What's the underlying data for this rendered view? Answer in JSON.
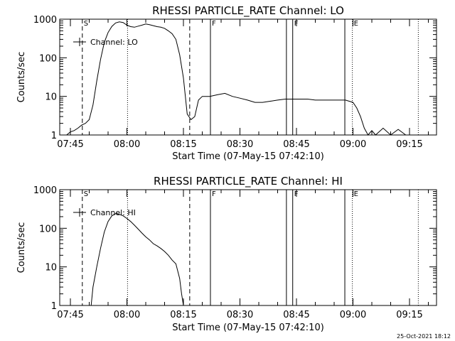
{
  "chart_data": [
    {
      "type": "line",
      "title": "RHESSI PARTICLE_RATE Channel: LO",
      "xlabel": "Start Time (07-May-15 07:42:10)",
      "ylabel": "Counts/sec",
      "yscale": "log",
      "ylim": [
        1,
        1000
      ],
      "xlim": [
        "07:42:10",
        "09:22:10"
      ],
      "x_ticks": [
        "07:45",
        "08:00",
        "08:15",
        "08:30",
        "08:45",
        "09:00",
        "09:15"
      ],
      "y_ticks": [
        "1",
        "10",
        "100",
        "1000"
      ],
      "legend": {
        "label": "Channel: LO",
        "placement": "top-left"
      },
      "markers": [
        {
          "label": "S",
          "time": "07:48:10",
          "style": "dashed"
        },
        {
          "label": "",
          "time": "08:00:10",
          "style": "dotted"
        },
        {
          "label": "",
          "time": "08:16:40",
          "style": "dashed"
        },
        {
          "label": "F",
          "time": "08:22:10",
          "style": "solid"
        },
        {
          "label": "",
          "time": "08:42:20",
          "style": "solid"
        },
        {
          "label": "F",
          "time": "08:44:00",
          "style": "solid"
        },
        {
          "label": "",
          "time": "08:57:50",
          "style": "solid"
        },
        {
          "label": "E",
          "time": "08:59:50",
          "style": "dotted"
        },
        {
          "label": "",
          "time": "09:17:20",
          "style": "dotted"
        }
      ],
      "series": [
        {
          "x": [
            "07:44:00",
            "07:45:00",
            "07:46:00",
            "07:47:00",
            "07:48:00",
            "07:49:00",
            "07:50:00",
            "07:51:00",
            "07:52:00",
            "07:53:00",
            "07:54:00",
            "07:55:00",
            "07:56:00",
            "07:57:00",
            "07:58:00",
            "07:59:00",
            "08:00:00",
            "08:01:00",
            "08:02:00",
            "08:03:00",
            "08:04:00",
            "08:05:00",
            "08:06:00",
            "08:07:00",
            "08:08:00",
            "08:09:00",
            "08:10:00",
            "08:11:00",
            "08:12:00",
            "08:13:00",
            "08:14:00",
            "08:15:00",
            "08:16:00",
            "08:17:00",
            "08:18:00",
            "08:19:00",
            "08:20:00",
            "08:22:00",
            "08:24:00",
            "08:26:00",
            "08:28:00",
            "08:30:00",
            "08:32:00",
            "08:34:00",
            "08:36:00",
            "08:38:00",
            "08:40:00",
            "08:42:00",
            "08:44:00",
            "08:46:00",
            "08:48:00",
            "08:50:00",
            "08:52:00",
            "08:54:00",
            "08:56:00",
            "08:58:00",
            "09:00:00",
            "09:01:00",
            "09:02:00",
            "09:03:00",
            "09:04:00",
            "09:05:00",
            "09:06:00",
            "09:08:00",
            "09:10:00",
            "09:12:00",
            "09:14:00"
          ],
          "y": [
            1,
            1.2,
            1.3,
            1.5,
            1.8,
            2,
            2.5,
            6,
            25,
            90,
            250,
            450,
            650,
            800,
            850,
            820,
            700,
            640,
            620,
            660,
            700,
            750,
            720,
            680,
            640,
            620,
            580,
            500,
            420,
            300,
            120,
            30,
            3.5,
            2.5,
            3,
            8,
            10,
            10,
            11,
            12,
            10,
            9,
            8,
            7,
            7,
            7.5,
            8,
            8.5,
            8.5,
            8.5,
            8.5,
            8,
            8,
            8,
            8,
            8,
            7,
            5,
            3,
            1.5,
            1,
            1.3,
            1,
            1.5,
            1,
            1.4,
            1
          ]
        }
      ]
    },
    {
      "type": "line",
      "title": "RHESSI PARTICLE_RATE Channel: HI",
      "xlabel": "Start Time (07-May-15 07:42:10)",
      "ylabel": "Counts/sec",
      "yscale": "log",
      "ylim": [
        1,
        1000
      ],
      "xlim": [
        "07:42:10",
        "09:22:10"
      ],
      "x_ticks": [
        "07:45",
        "08:00",
        "08:15",
        "08:30",
        "08:45",
        "09:00",
        "09:15"
      ],
      "y_ticks": [
        "1",
        "10",
        "100",
        "1000"
      ],
      "legend": {
        "label": "Channel: HI",
        "placement": "top-left"
      },
      "markers": [
        {
          "label": "S",
          "time": "07:48:10",
          "style": "dashed"
        },
        {
          "label": "",
          "time": "08:00:10",
          "style": "dotted"
        },
        {
          "label": "",
          "time": "08:16:40",
          "style": "dashed"
        },
        {
          "label": "F",
          "time": "08:22:10",
          "style": "solid"
        },
        {
          "label": "",
          "time": "08:42:20",
          "style": "solid"
        },
        {
          "label": "F",
          "time": "08:44:00",
          "style": "solid"
        },
        {
          "label": "",
          "time": "08:57:50",
          "style": "solid"
        },
        {
          "label": "E",
          "time": "08:59:50",
          "style": "dotted"
        },
        {
          "label": "",
          "time": "09:17:20",
          "style": "dotted"
        }
      ],
      "series": [
        {
          "x": [
            "07:50:30",
            "07:51:00",
            "07:52:00",
            "07:53:00",
            "07:54:00",
            "07:55:00",
            "07:56:00",
            "07:57:00",
            "07:58:00",
            "07:59:00",
            "08:00:00",
            "08:01:00",
            "08:02:00",
            "08:03:00",
            "08:04:00",
            "08:05:00",
            "08:06:00",
            "08:07:00",
            "08:08:00",
            "08:09:00",
            "08:10:00",
            "08:11:00",
            "08:12:00",
            "08:13:00",
            "08:14:00",
            "08:14:30",
            "08:15:00"
          ],
          "y": [
            1,
            3,
            10,
            30,
            80,
            150,
            210,
            240,
            230,
            210,
            180,
            150,
            120,
            95,
            75,
            60,
            50,
            40,
            35,
            30,
            25,
            20,
            15,
            12,
            5,
            2,
            1
          ]
        }
      ]
    }
  ],
  "footer": {
    "stamp": "25-Oct-2021 18:12"
  }
}
